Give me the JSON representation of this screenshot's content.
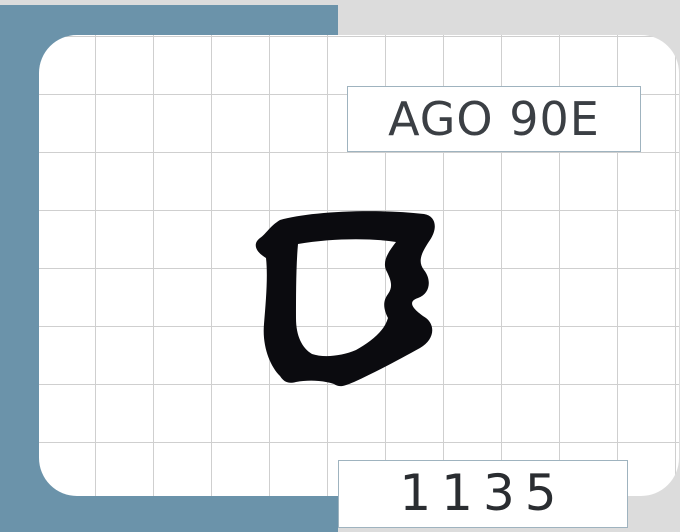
{
  "card": {
    "code": "AGO 90E",
    "number": "1135"
  },
  "colors": {
    "background": "#dcdcdc",
    "stripe": "#6b93aa",
    "card": "#ffffff",
    "grid": "#cfcfcf",
    "shape": "#0b0b0f",
    "text": "#3b3f44"
  },
  "icons": {
    "shape": "irregular-frame-silhouette-icon"
  }
}
